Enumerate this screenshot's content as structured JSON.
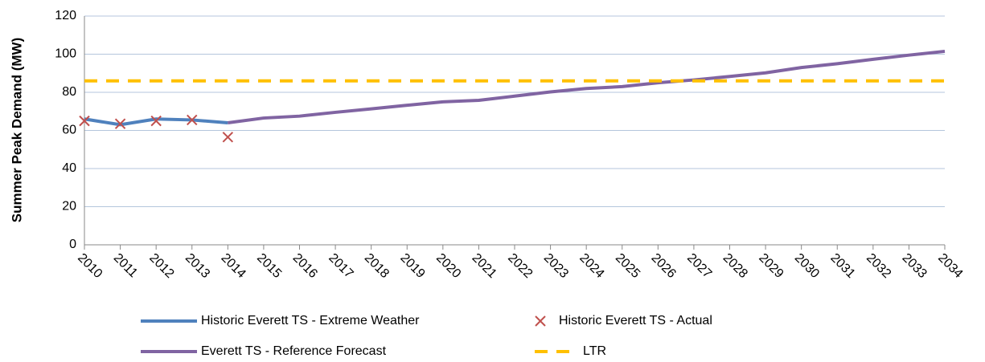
{
  "chart_data": {
    "type": "line",
    "y_label": "Summer Peak Demand (MW)",
    "categories": [
      "2010",
      "2011",
      "2012",
      "2013",
      "2014",
      "2015",
      "2016",
      "2017",
      "2018",
      "2019",
      "2020",
      "2021",
      "2022",
      "2023",
      "2024",
      "2025",
      "2026",
      "2027",
      "2028",
      "2029",
      "2030",
      "2031",
      "2032",
      "2033",
      "2034"
    ],
    "ylim": [
      0,
      120
    ],
    "yticks": [
      0,
      20,
      40,
      60,
      80,
      100,
      120
    ],
    "grid": true,
    "legend": "bottom",
    "series": [
      {
        "name": "Historic Everett TS - Extreme Weather",
        "color": "#4f81bd",
        "values": [
          66,
          63,
          66,
          65.5,
          64,
          null,
          null,
          null,
          null,
          null,
          null,
          null,
          null,
          null,
          null,
          null,
          null,
          null,
          null,
          null,
          null,
          null,
          null,
          null,
          null
        ]
      },
      {
        "name": "Historic Everett TS - Actual",
        "color": "#c0504d",
        "marker": "x",
        "values": [
          65,
          63.5,
          65,
          65.5,
          56.5,
          null,
          null,
          null,
          null,
          null,
          null,
          null,
          null,
          null,
          null,
          null,
          null,
          null,
          null,
          null,
          null,
          null,
          null,
          null,
          null
        ]
      },
      {
        "name": "Everett TS - Reference Forecast",
        "color": "#8064a2",
        "values": [
          null,
          null,
          null,
          null,
          64,
          66.5,
          67.5,
          69.5,
          71.3,
          73.2,
          75,
          75.8,
          78,
          80.2,
          82,
          83,
          85,
          86.5,
          88.3,
          90.2,
          93,
          95,
          97.3,
          99.5,
          101.5
        ]
      },
      {
        "name": "LTR",
        "color": "#ffc000",
        "dash": true,
        "values": [
          86,
          86,
          86,
          86,
          86,
          86,
          86,
          86,
          86,
          86,
          86,
          86,
          86,
          86,
          86,
          86,
          86,
          86,
          86,
          86,
          86,
          86,
          86,
          86,
          86
        ]
      }
    ]
  }
}
